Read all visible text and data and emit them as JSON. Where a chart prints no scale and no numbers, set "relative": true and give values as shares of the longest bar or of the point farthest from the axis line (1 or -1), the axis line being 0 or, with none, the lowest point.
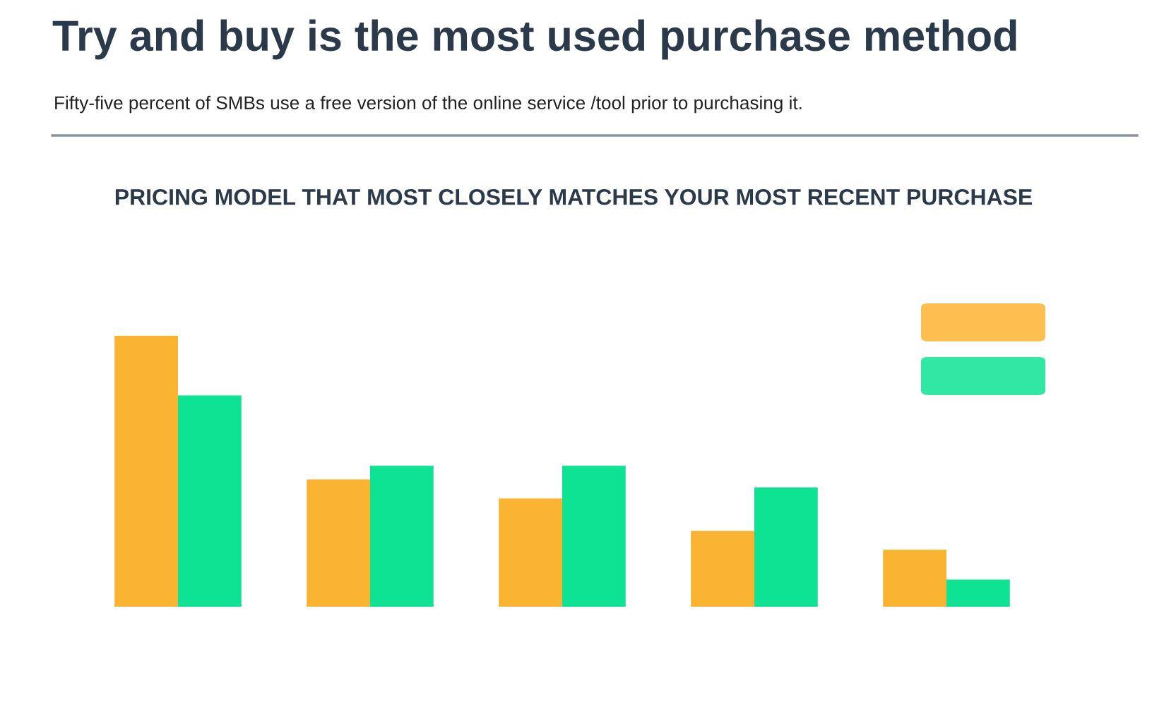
{
  "chart_data": {
    "type": "bar",
    "title": "Try and buy is the most used purchase method",
    "subtitle": "Fifty-five percent of SMBs use a free version of the online service /tool prior to purchasing it.",
    "annotations": [
      "PRICING MODEL THAT MOST CLOSELY MATCHES YOUR MOST RECENT PURCHASE"
    ],
    "relative": true,
    "categories": [
      null,
      null,
      null,
      null,
      null
    ],
    "series": [
      {
        "color": "#fbb431",
        "values": [
          1,
          0.47,
          0.4,
          0.28,
          0.21
        ]
      },
      {
        "color": "#0ee293",
        "values": [
          0.78,
          0.52,
          0.52,
          0.44,
          0.1
        ]
      }
    ],
    "grid": false
  }
}
